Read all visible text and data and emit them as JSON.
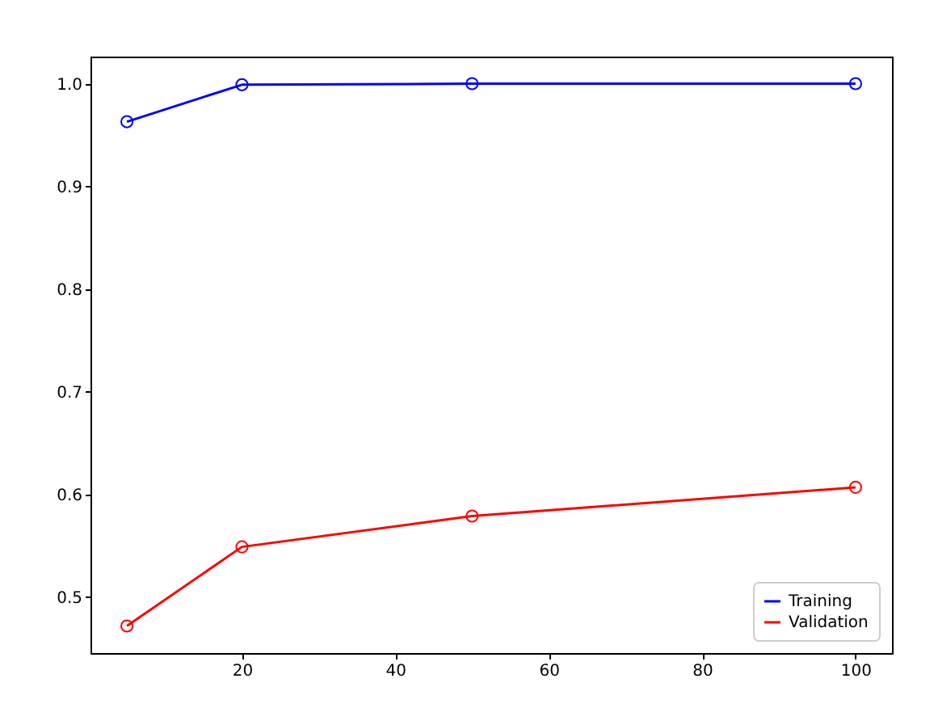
{
  "chart_data": {
    "type": "line",
    "x": [
      5,
      20,
      50,
      100
    ],
    "series": [
      {
        "name": "Training",
        "color": "#0000ff",
        "values": [
          0.963,
          0.999,
          1.0,
          1.0
        ]
      },
      {
        "name": "Validation",
        "color": "#ff0000",
        "values": [
          0.472,
          0.549,
          0.579,
          0.607
        ]
      }
    ],
    "xlim": [
      0.25,
      104.75
    ],
    "xticks": [
      20,
      40,
      60,
      80,
      100
    ],
    "ylim": [
      0.4456,
      1.0264
    ],
    "yticks": [
      {
        "value": 0.5,
        "label": "0.5"
      },
      {
        "value": 0.6,
        "label": "0.6"
      },
      {
        "value": 0.7,
        "label": "0.7"
      },
      {
        "value": 0.8,
        "label": "0.8"
      },
      {
        "value": 0.9,
        "label": "0.9"
      },
      {
        "value": 1.0,
        "label": "1.0"
      }
    ],
    "grid": false,
    "legend": "bottom right",
    "marker": "circle",
    "line_style": "solid"
  }
}
